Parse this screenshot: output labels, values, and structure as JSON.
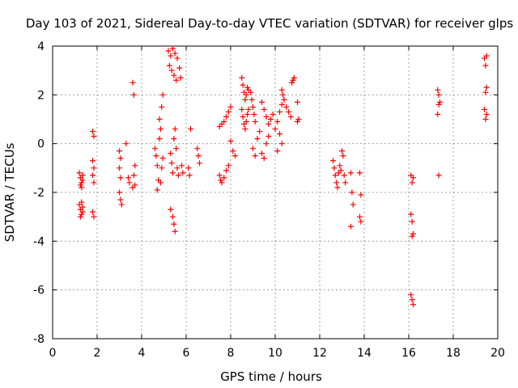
{
  "chart_data": {
    "type": "scatter",
    "title": "Day 103 of 2021, Sidereal Day-to-day VTEC variation (SDTVAR) for receiver glps",
    "xlabel": "GPS time / hours",
    "ylabel": "SDTVAR / TECUs",
    "xlim": [
      0,
      20
    ],
    "ylim": [
      -8,
      4
    ],
    "xticks": [
      "0",
      "2",
      "4",
      "6",
      "8",
      "10",
      "12",
      "14",
      "16",
      "18",
      "20"
    ],
    "yticks": [
      "-8",
      "-6",
      "-4",
      "-2",
      "0",
      "2",
      "4"
    ],
    "grid": true,
    "marker": "+",
    "color": "#ff0000",
    "series": [
      {
        "name": "SDTVAR",
        "points": [
          [
            1.2,
            -1.2
          ],
          [
            1.25,
            -1.4
          ],
          [
            1.3,
            -1.6
          ],
          [
            1.35,
            -1.5
          ],
          [
            1.3,
            -1.8
          ],
          [
            1.25,
            -1.7
          ],
          [
            1.35,
            -1.3
          ],
          [
            1.2,
            -2.5
          ],
          [
            1.25,
            -2.7
          ],
          [
            1.3,
            -2.9
          ],
          [
            1.35,
            -2.6
          ],
          [
            1.3,
            -2.4
          ],
          [
            1.25,
            -3.0
          ],
          [
            1.35,
            -2.8
          ],
          [
            1.8,
            0.5
          ],
          [
            1.85,
            0.3
          ],
          [
            1.8,
            -0.7
          ],
          [
            1.85,
            -1.0
          ],
          [
            1.8,
            -1.3
          ],
          [
            1.85,
            -1.6
          ],
          [
            1.8,
            -2.8
          ],
          [
            1.85,
            -3.0
          ],
          [
            3.0,
            -0.3
          ],
          [
            3.05,
            -0.6
          ],
          [
            3.0,
            -1.0
          ],
          [
            3.05,
            -1.4
          ],
          [
            3.0,
            -2.0
          ],
          [
            3.05,
            -2.3
          ],
          [
            3.1,
            -2.5
          ],
          [
            3.3,
            0.0
          ],
          [
            3.4,
            -1.4
          ],
          [
            3.45,
            -1.6
          ],
          [
            3.6,
            2.5
          ],
          [
            3.65,
            2.0
          ],
          [
            3.7,
            -0.9
          ],
          [
            3.65,
            -1.3
          ],
          [
            3.7,
            -1.7
          ],
          [
            3.6,
            -1.8
          ],
          [
            4.6,
            -0.2
          ],
          [
            4.65,
            -0.5
          ],
          [
            4.7,
            -0.9
          ],
          [
            4.75,
            -1.5
          ],
          [
            4.7,
            -1.9
          ],
          [
            4.8,
            0.2
          ],
          [
            4.85,
            0.6
          ],
          [
            4.8,
            1.0
          ],
          [
            4.9,
            1.5
          ],
          [
            4.95,
            2.0
          ],
          [
            4.9,
            -1.0
          ],
          [
            4.95,
            -0.6
          ],
          [
            4.85,
            -1.6
          ],
          [
            5.2,
            3.8
          ],
          [
            5.3,
            3.6
          ],
          [
            5.4,
            3.9
          ],
          [
            5.5,
            3.7
          ],
          [
            5.6,
            3.5
          ],
          [
            5.25,
            3.2
          ],
          [
            5.35,
            3.0
          ],
          [
            5.45,
            2.8
          ],
          [
            5.55,
            2.6
          ],
          [
            5.7,
            3.1
          ],
          [
            5.75,
            2.7
          ],
          [
            5.3,
            -0.4
          ],
          [
            5.35,
            -0.8
          ],
          [
            5.4,
            -1.2
          ],
          [
            5.45,
            0.2
          ],
          [
            5.5,
            0.6
          ],
          [
            5.55,
            -0.2
          ],
          [
            5.3,
            -2.7
          ],
          [
            5.4,
            -3.0
          ],
          [
            5.45,
            -3.3
          ],
          [
            5.5,
            -3.6
          ],
          [
            5.6,
            -1.0
          ],
          [
            5.65,
            -1.3
          ],
          [
            5.8,
            -0.9
          ],
          [
            5.85,
            -1.2
          ],
          [
            6.1,
            -1.0
          ],
          [
            6.15,
            -1.3
          ],
          [
            6.2,
            0.6
          ],
          [
            6.5,
            -0.2
          ],
          [
            6.55,
            -0.5
          ],
          [
            6.6,
            -0.8
          ],
          [
            7.5,
            -1.3
          ],
          [
            7.55,
            -1.5
          ],
          [
            7.6,
            -1.6
          ],
          [
            7.7,
            -1.4
          ],
          [
            7.8,
            -1.1
          ],
          [
            7.9,
            -0.9
          ],
          [
            7.5,
            0.7
          ],
          [
            7.6,
            0.8
          ],
          [
            7.7,
            0.9
          ],
          [
            7.8,
            1.1
          ],
          [
            7.9,
            1.3
          ],
          [
            8.0,
            1.5
          ],
          [
            8.1,
            -0.3
          ],
          [
            8.2,
            -0.5
          ],
          [
            8.0,
            0.1
          ],
          [
            8.5,
            2.7
          ],
          [
            8.55,
            2.4
          ],
          [
            8.6,
            2.1
          ],
          [
            8.65,
            1.8
          ],
          [
            8.7,
            2.0
          ],
          [
            8.75,
            2.3
          ],
          [
            8.8,
            2.2
          ],
          [
            8.5,
            1.4
          ],
          [
            8.55,
            1.1
          ],
          [
            8.6,
            0.8
          ],
          [
            8.65,
            0.6
          ],
          [
            8.7,
            0.9
          ],
          [
            8.75,
            1.2
          ],
          [
            8.8,
            1.4
          ],
          [
            8.9,
            2.1
          ],
          [
            8.95,
            1.8
          ],
          [
            9.0,
            1.5
          ],
          [
            9.05,
            1.2
          ],
          [
            9.1,
            0.9
          ],
          [
            9.0,
            -0.2
          ],
          [
            9.1,
            -0.5
          ],
          [
            9.2,
            0.2
          ],
          [
            9.3,
            0.5
          ],
          [
            9.4,
            -0.4
          ],
          [
            9.5,
            -0.6
          ],
          [
            9.6,
            0.0
          ],
          [
            9.7,
            0.3
          ],
          [
            9.4,
            1.7
          ],
          [
            9.5,
            1.4
          ],
          [
            9.6,
            1.1
          ],
          [
            9.7,
            0.8
          ],
          [
            9.8,
            1.0
          ],
          [
            9.9,
            1.2
          ],
          [
            10.0,
            0.6
          ],
          [
            10.1,
            0.9
          ],
          [
            10.2,
            1.3
          ],
          [
            10.3,
            1.6
          ],
          [
            10.2,
            0.4
          ],
          [
            10.3,
            0.0
          ],
          [
            10.1,
            -0.3
          ],
          [
            10.3,
            2.2
          ],
          [
            10.35,
            2.0
          ],
          [
            10.4,
            1.8
          ],
          [
            10.5,
            1.5
          ],
          [
            10.6,
            1.3
          ],
          [
            10.7,
            1.1
          ],
          [
            10.8,
            2.6
          ],
          [
            10.75,
            2.5
          ],
          [
            10.85,
            2.7
          ],
          [
            11.0,
            1.7
          ],
          [
            11.05,
            1.0
          ],
          [
            11.0,
            0.9
          ],
          [
            12.6,
            -0.7
          ],
          [
            12.65,
            -1.0
          ],
          [
            12.7,
            -1.3
          ],
          [
            12.75,
            -1.6
          ],
          [
            12.8,
            -1.8
          ],
          [
            12.85,
            -1.2
          ],
          [
            12.9,
            -0.9
          ],
          [
            12.95,
            -1.1
          ],
          [
            13.0,
            -0.3
          ],
          [
            13.05,
            -0.5
          ],
          [
            13.1,
            -1.3
          ],
          [
            13.15,
            -1.6
          ],
          [
            13.4,
            -1.2
          ],
          [
            13.45,
            -2.0
          ],
          [
            13.5,
            -2.5
          ],
          [
            13.4,
            -3.4
          ],
          [
            13.8,
            -1.2
          ],
          [
            13.85,
            -2.1
          ],
          [
            13.8,
            -3.0
          ],
          [
            13.85,
            -3.2
          ],
          [
            16.1,
            -1.3
          ],
          [
            16.15,
            -1.6
          ],
          [
            16.2,
            -1.4
          ],
          [
            16.1,
            -2.9
          ],
          [
            16.15,
            -3.2
          ],
          [
            16.2,
            -3.7
          ],
          [
            16.15,
            -3.8
          ],
          [
            16.1,
            -6.2
          ],
          [
            16.15,
            -6.4
          ],
          [
            16.2,
            -6.6
          ],
          [
            17.3,
            2.2
          ],
          [
            17.35,
            2.0
          ],
          [
            17.4,
            1.7
          ],
          [
            17.35,
            1.6
          ],
          [
            17.3,
            1.2
          ],
          [
            17.35,
            -1.3
          ],
          [
            19.4,
            3.5
          ],
          [
            19.5,
            3.6
          ],
          [
            19.45,
            3.2
          ],
          [
            19.5,
            2.3
          ],
          [
            19.45,
            2.1
          ],
          [
            19.4,
            1.4
          ],
          [
            19.5,
            1.2
          ],
          [
            19.45,
            1.0
          ]
        ]
      }
    ]
  }
}
